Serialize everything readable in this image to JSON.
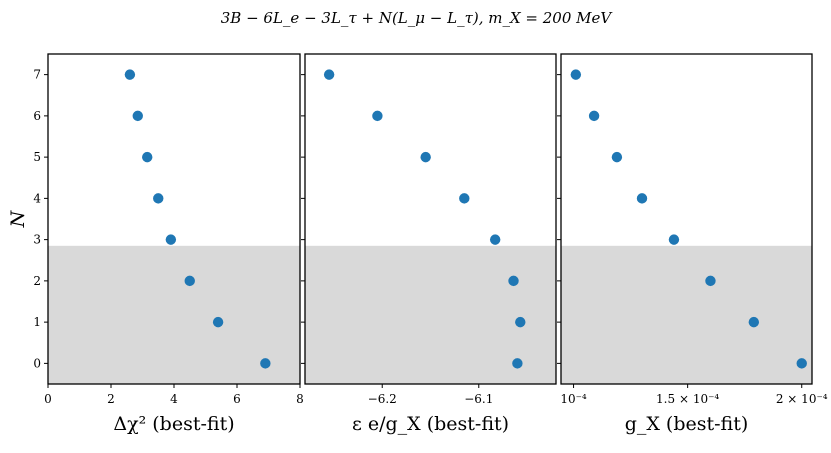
{
  "chart_data": {
    "type": "scatter",
    "title": "3B − 6L_e − 3L_τ + N(L_μ − L_τ),    m_X = 200 MeV",
    "ylabel": "N",
    "shared_y": {
      "ticks": [
        "0",
        "1",
        "2",
        "3",
        "4",
        "5",
        "6",
        "7"
      ],
      "ylim": [
        -0.5,
        7.5
      ],
      "excluded_region_below": 2.85
    },
    "point_color": "#1f77b4",
    "shade_color": "#d9d9d9",
    "panels": [
      {
        "name": "delta-chi2",
        "xlabel": "Δχ² (best-fit)",
        "xlim": [
          0,
          8
        ],
        "ticks": [
          {
            "value": 0,
            "label": "0"
          },
          {
            "value": 2,
            "label": "2"
          },
          {
            "value": 4,
            "label": "4"
          },
          {
            "value": 6,
            "label": "6"
          },
          {
            "value": 8,
            "label": "8"
          }
        ],
        "points": [
          {
            "N": 7,
            "x": 2.6
          },
          {
            "N": 6,
            "x": 2.85
          },
          {
            "N": 5,
            "x": 3.15
          },
          {
            "N": 4,
            "x": 3.5
          },
          {
            "N": 3,
            "x": 3.9
          },
          {
            "N": 2,
            "x": 4.5
          },
          {
            "N": 1,
            "x": 5.4
          },
          {
            "N": 0,
            "x": 6.9
          }
        ]
      },
      {
        "name": "epsilon",
        "xlabel": "ε e/g_X (best-fit)",
        "xlim": [
          -6.28,
          -6.02
        ],
        "ticks": [
          {
            "value": -6.2,
            "label": "−6.2"
          },
          {
            "value": -6.1,
            "label": "−6.1"
          }
        ],
        "points": [
          {
            "N": 7,
            "x": -6.255
          },
          {
            "N": 6,
            "x": -6.205
          },
          {
            "N": 5,
            "x": -6.155
          },
          {
            "N": 4,
            "x": -6.115
          },
          {
            "N": 3,
            "x": -6.083
          },
          {
            "N": 2,
            "x": -6.064
          },
          {
            "N": 1,
            "x": -6.057
          },
          {
            "N": 0,
            "x": -6.06
          }
        ]
      },
      {
        "name": "g-x",
        "xlabel": "g_X (best-fit)",
        "xlim": [
          9.45e-05,
          0.0002045
        ],
        "ticks": [
          {
            "value": 0.0001,
            "label": "10⁻⁴"
          },
          {
            "value": 0.00015,
            "label": "1.5 × 10⁻⁴"
          },
          {
            "value": 0.0002,
            "label": "2 × 10⁻⁴"
          }
        ],
        "points": [
          {
            "N": 7,
            "x": 0.000101
          },
          {
            "N": 6,
            "x": 0.000109
          },
          {
            "N": 5,
            "x": 0.000119
          },
          {
            "N": 4,
            "x": 0.00013
          },
          {
            "N": 3,
            "x": 0.000144
          },
          {
            "N": 2,
            "x": 0.00016
          },
          {
            "N": 1,
            "x": 0.000179
          },
          {
            "N": 0,
            "x": 0.0002
          }
        ]
      }
    ]
  }
}
